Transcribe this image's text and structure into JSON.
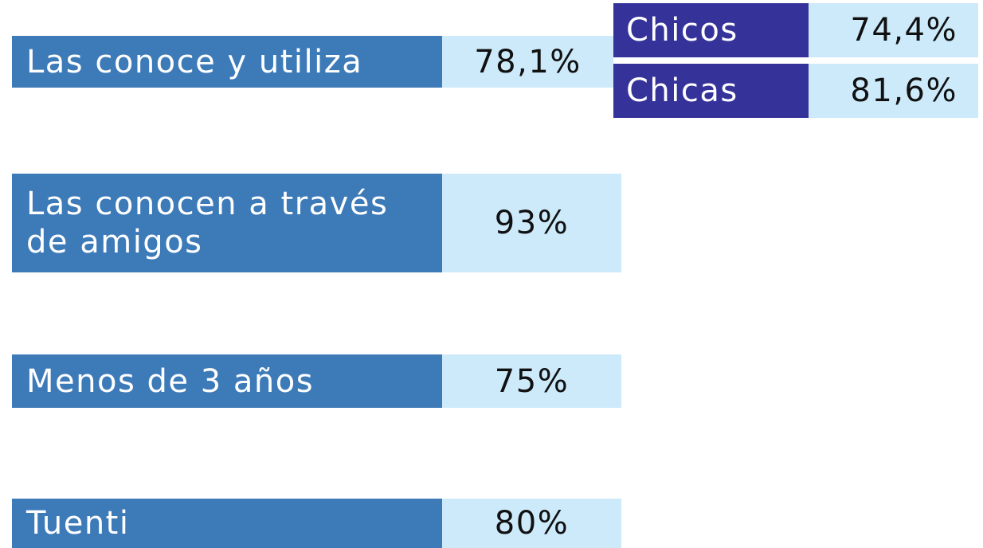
{
  "rows": [
    {
      "label": "Las conoce y utiliza",
      "value": "78,1%"
    },
    {
      "label": "Las conocen a través de amigos",
      "value": "93%"
    },
    {
      "label": "Menos de 3 años",
      "value": "75%"
    },
    {
      "label": "Tuenti",
      "value": "80%"
    }
  ],
  "breakdown": [
    {
      "label": "Chicos",
      "value": "74,4%"
    },
    {
      "label": "Chicas",
      "value": "81,6%"
    }
  ]
}
